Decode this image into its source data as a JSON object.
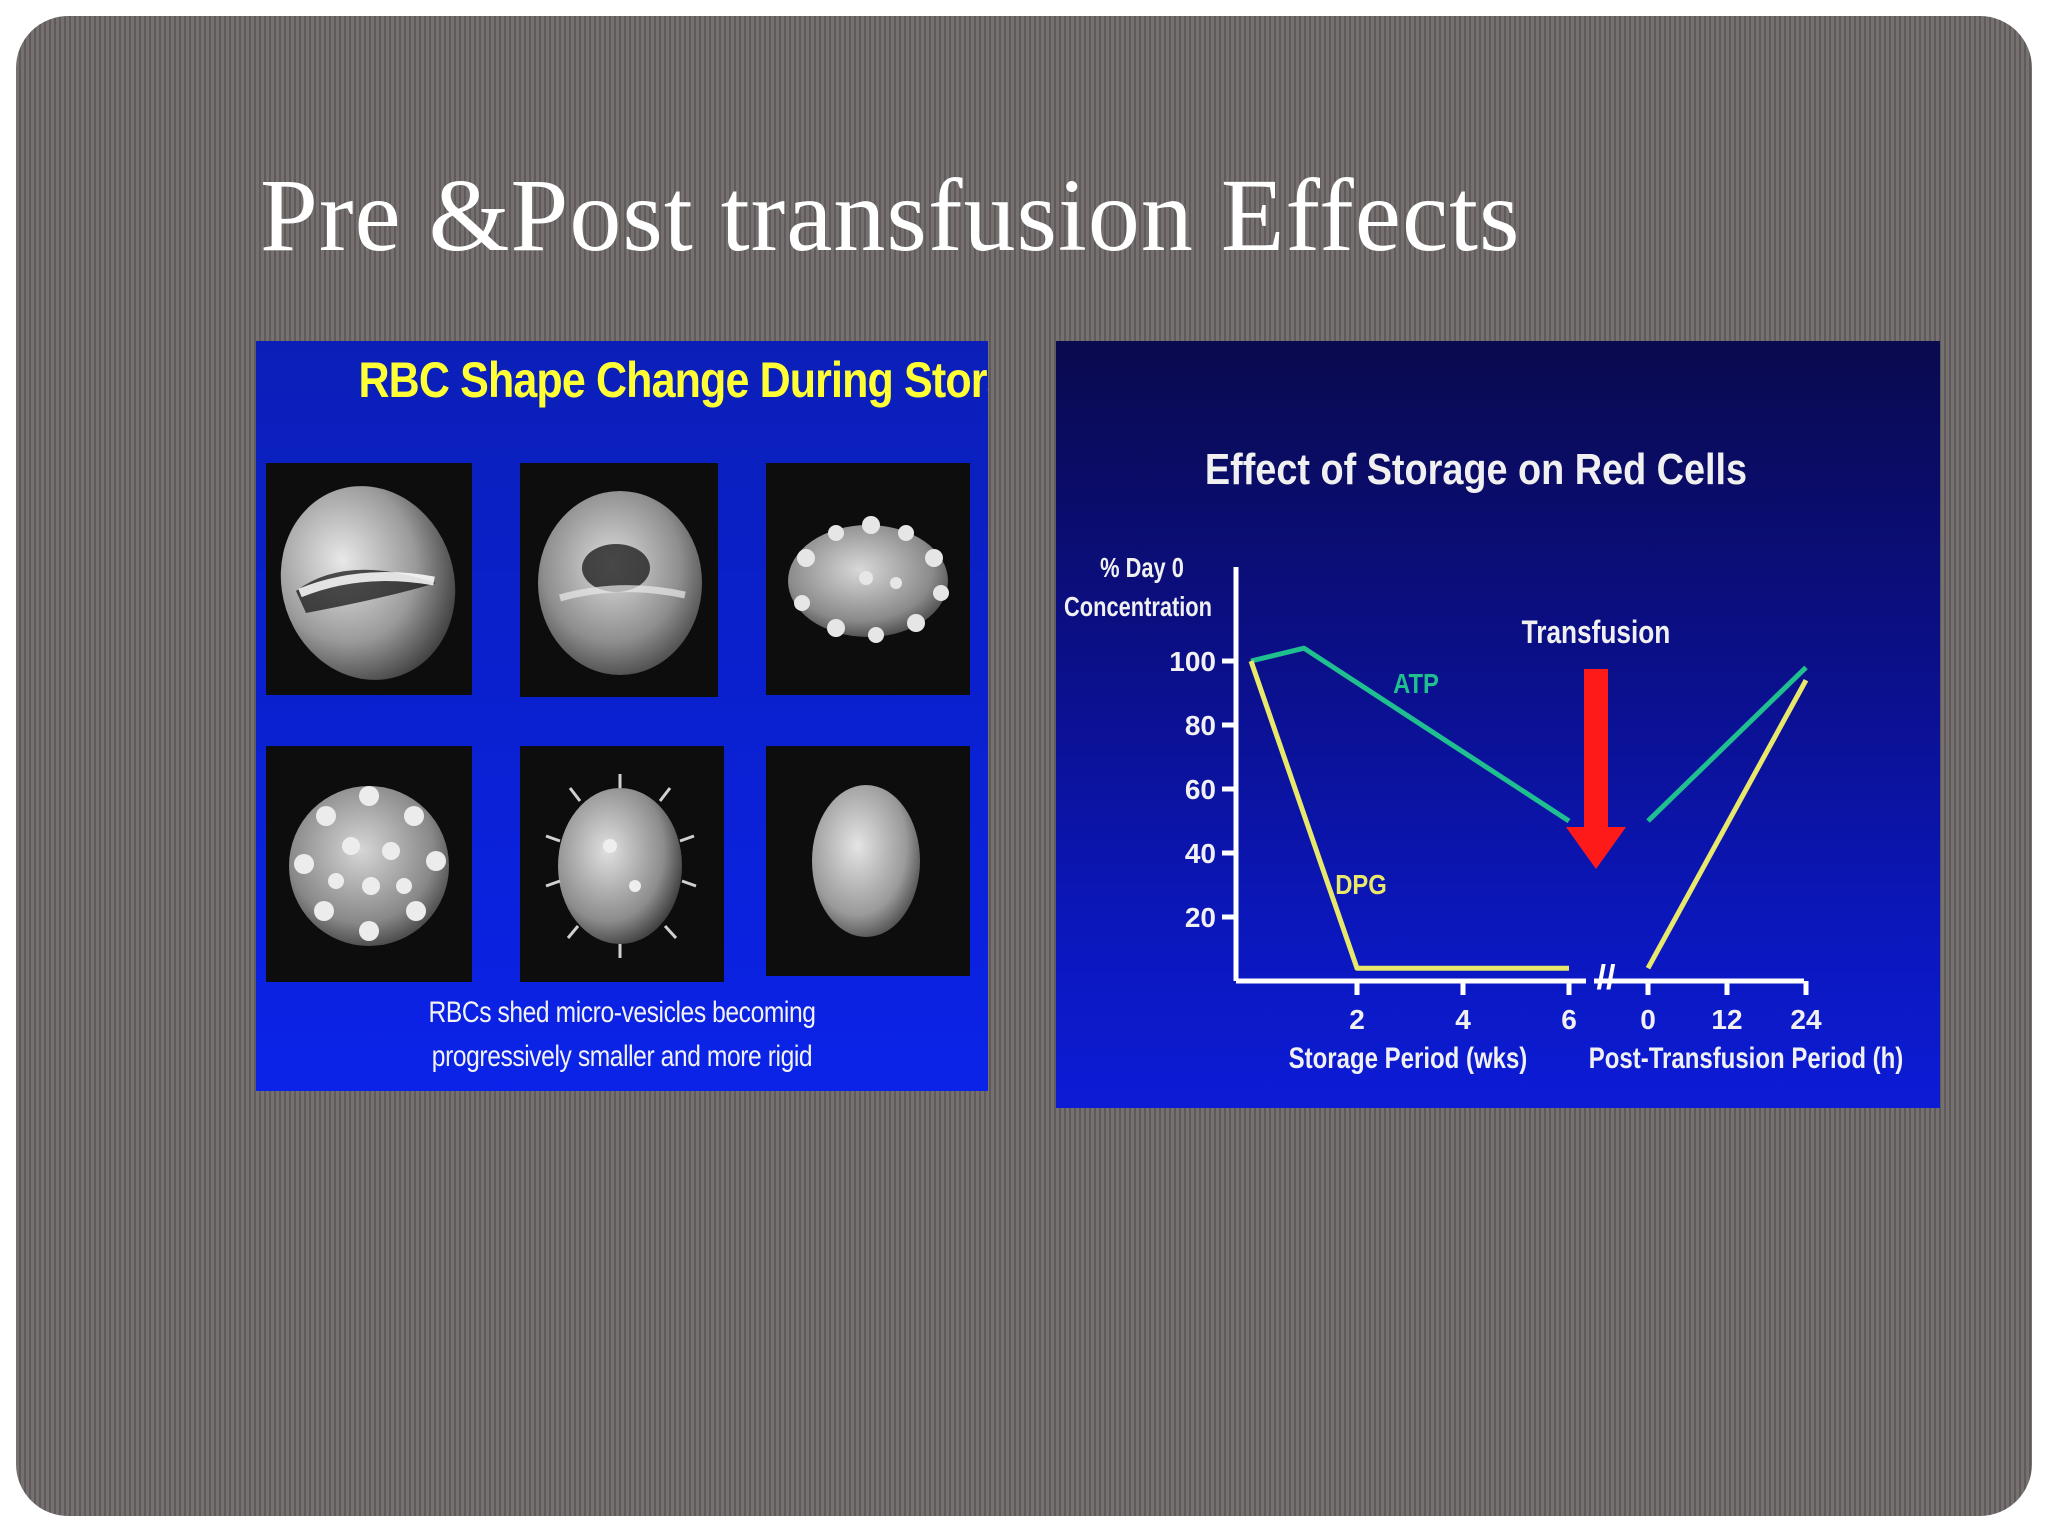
{
  "slide": {
    "title": "Pre &Post transfusion Effects"
  },
  "rbc_panel": {
    "title": "RBC Shape Change During Storage",
    "caption_lines": [
      "RBCs shed micro-vesicles becoming",
      "progressively smaller and more rigid"
    ]
  },
  "storage_chart": {
    "title": "Effect of Storage on Red Cells",
    "ylabel_lines": [
      "% Day 0",
      "Concentration"
    ],
    "ytick_labels": [
      "100",
      "80",
      "60",
      "40",
      "20"
    ],
    "storage_xlabel": "Storage Period (wks)",
    "storage_xtick_labels": [
      "2",
      "4",
      "6"
    ],
    "post_xlabel": "Post-Transfusion Period (h)",
    "post_xtick_labels": [
      "0",
      "12",
      "24"
    ],
    "transfusion_label": "Transfusion",
    "axis_break_symbol": "//"
  },
  "chart_data": {
    "type": "line",
    "title": "Effect of Storage on Red Cells",
    "ylabel": "% Day 0 Concentration",
    "yticks": [
      100,
      80,
      60,
      40,
      20
    ],
    "ylim": [
      0,
      100
    ],
    "grid": false,
    "segments": [
      {
        "xlabel": "Storage Period (wks)",
        "xticks": [
          2,
          4,
          6
        ],
        "xlim": [
          0,
          6
        ]
      },
      {
        "xlabel": "Post-Transfusion Period (h)",
        "xticks": [
          0,
          12,
          24
        ],
        "xlim": [
          0,
          24
        ]
      }
    ],
    "series": [
      {
        "name": "ATP",
        "color": "#1fbf8f",
        "storage": {
          "x": [
            0,
            1,
            6
          ],
          "y": [
            100,
            104,
            50
          ]
        },
        "post": {
          "x": [
            0,
            24
          ],
          "y": [
            50,
            98
          ]
        }
      },
      {
        "name": "DPG",
        "color": "#e8e86a",
        "storage": {
          "x": [
            0,
            2,
            6
          ],
          "y": [
            100,
            4,
            4
          ]
        },
        "post": {
          "x": [
            0,
            24
          ],
          "y": [
            4,
            94
          ]
        }
      }
    ],
    "annotations": [
      {
        "text": "Transfusion",
        "color": "#ff1a1a",
        "shape": "arrow-down"
      }
    ]
  }
}
